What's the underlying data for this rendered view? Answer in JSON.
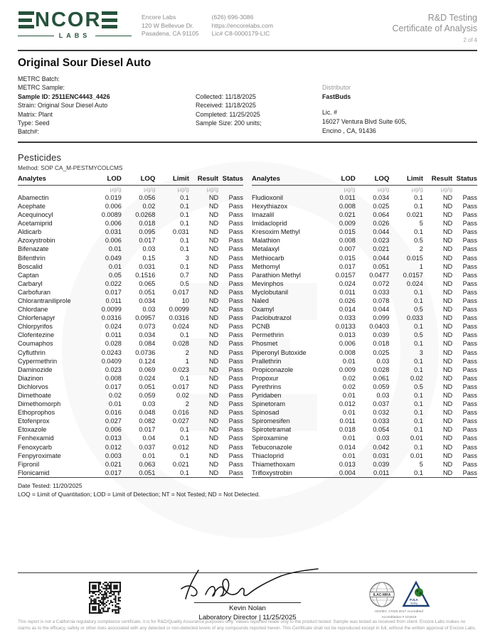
{
  "colors": {
    "brand_green": "#26523c",
    "rule_dark": "#3a3a3a"
  },
  "header": {
    "logo": {
      "brand": "NCOR",
      "sub": "LABS"
    },
    "lab": {
      "name": "Encore Labs",
      "address1": "120 W Bellevue Dr.",
      "address2": "Pasadena, CA 91105",
      "phone": "(626) 696-3086",
      "website": "https://encorelabs.com",
      "license": "Lic# C8-0000179-LIC"
    },
    "report": {
      "line1": "R&D Testing",
      "line2": "Certificate of Analysis",
      "page": "2 of 4"
    }
  },
  "sample": {
    "title": "Original Sour Diesel Auto",
    "meta": [
      "METRC Batch:",
      "METRC Sample:",
      "Sample ID: 2511ENC4443_4426",
      "Strain: Original Sour Diesel Auto",
      "Matrix: Plant",
      "Type: Seed",
      "Batch#:"
    ],
    "dates": [
      "Collected: 11/18/2025",
      "Received: 11/18/2025",
      "Completed: 11/25/2025",
      "Sample Size: 200 units;"
    ],
    "distributor": {
      "label": "Distributor",
      "name": "FastBuds",
      "lic_label": "Lic. #",
      "address1": "16027 Ventura Blvd Suite 605,",
      "address2": "Encino , CA, 91436"
    }
  },
  "pesticides": {
    "section_title": "Pesticides",
    "method": "Method: SOP CA_M-PESTMYCOLCMS",
    "columns": [
      "Analytes",
      "LOD",
      "LOQ",
      "Limit",
      "Result",
      "Status"
    ],
    "unit": "µg/g",
    "left_rows": [
      [
        "Abamectin",
        "0.019",
        "0.056",
        "0.1",
        "ND",
        "Pass"
      ],
      [
        "Acephate",
        "0.006",
        "0.02",
        "0.1",
        "ND",
        "Pass"
      ],
      [
        "Acequinocyl",
        "0.0089",
        "0.0268",
        "0.1",
        "ND",
        "Pass"
      ],
      [
        "Acetamiprid",
        "0.006",
        "0.018",
        "0.1",
        "ND",
        "Pass"
      ],
      [
        "Aldicarb",
        "0.031",
        "0.095",
        "0.031",
        "ND",
        "Pass"
      ],
      [
        "Azoxystrobin",
        "0.006",
        "0.017",
        "0.1",
        "ND",
        "Pass"
      ],
      [
        "Bifenazate",
        "0.01",
        "0.03",
        "0.1",
        "ND",
        "Pass"
      ],
      [
        "Bifenthrin",
        "0.049",
        "0.15",
        "3",
        "ND",
        "Pass"
      ],
      [
        "Boscalid",
        "0.01",
        "0.031",
        "0.1",
        "ND",
        "Pass"
      ],
      [
        "Captan",
        "0.05",
        "0.1516",
        "0.7",
        "ND",
        "Pass"
      ],
      [
        "Carbaryl",
        "0.022",
        "0.065",
        "0.5",
        "ND",
        "Pass"
      ],
      [
        "Carbofuran",
        "0.017",
        "0.051",
        "0.017",
        "ND",
        "Pass"
      ],
      [
        "Chlorantraniliprole",
        "0.011",
        "0.034",
        "10",
        "ND",
        "Pass"
      ],
      [
        "Chlordane",
        "0.0099",
        "0.03",
        "0.0099",
        "ND",
        "Pass"
      ],
      [
        "Chlorfenapyr",
        "0.0316",
        "0.0957",
        "0.0316",
        "ND",
        "Pass"
      ],
      [
        "Chlorpyrifos",
        "0.024",
        "0.073",
        "0.024",
        "ND",
        "Pass"
      ],
      [
        "Clofentezine",
        "0.011",
        "0.034",
        "0.1",
        "ND",
        "Pass"
      ],
      [
        "Coumaphos",
        "0.028",
        "0.084",
        "0.028",
        "ND",
        "Pass"
      ],
      [
        "Cyfluthrin",
        "0.0243",
        "0.0736",
        "2",
        "ND",
        "Pass"
      ],
      [
        "Cypermethrin",
        "0.0409",
        "0.124",
        "1",
        "ND",
        "Pass"
      ],
      [
        "Daminozide",
        "0.023",
        "0.069",
        "0.023",
        "ND",
        "Pass"
      ],
      [
        "Diazinon",
        "0.008",
        "0.024",
        "0.1",
        "ND",
        "Pass"
      ],
      [
        "Dichlorvos",
        "0.017",
        "0.051",
        "0.017",
        "ND",
        "Pass"
      ],
      [
        "Dimethoate",
        "0.02",
        "0.059",
        "0.02",
        "ND",
        "Pass"
      ],
      [
        "Dimethomorph",
        "0.01",
        "0.03",
        "2",
        "ND",
        "Pass"
      ],
      [
        "Ethoprophos",
        "0.016",
        "0.048",
        "0.016",
        "ND",
        "Pass"
      ],
      [
        "Etofenprox",
        "0.027",
        "0.082",
        "0.027",
        "ND",
        "Pass"
      ],
      [
        "Etoxazole",
        "0.006",
        "0.017",
        "0.1",
        "ND",
        "Pass"
      ],
      [
        "Fenhexamid",
        "0.013",
        "0.04",
        "0.1",
        "ND",
        "Pass"
      ],
      [
        "Fenoxycarb",
        "0.012",
        "0.037",
        "0.012",
        "ND",
        "Pass"
      ],
      [
        "Fenpyroximate",
        "0.003",
        "0.01",
        "0.1",
        "ND",
        "Pass"
      ],
      [
        "Fipronil",
        "0.021",
        "0.063",
        "0.021",
        "ND",
        "Pass"
      ],
      [
        "Flonicamid",
        "0.017",
        "0.051",
        "0.1",
        "ND",
        "Pass"
      ]
    ],
    "right_rows": [
      [
        "Fludioxonil",
        "0.011",
        "0.034",
        "0.1",
        "ND",
        "Pass"
      ],
      [
        "Hexythiazox",
        "0.008",
        "0.025",
        "0.1",
        "ND",
        "Pass"
      ],
      [
        "Imazalil",
        "0.021",
        "0.064",
        "0.021",
        "ND",
        "Pass"
      ],
      [
        "Imidacloprid",
        "0.009",
        "0.026",
        "5",
        "ND",
        "Pass"
      ],
      [
        "Kresoxim Methyl",
        "0.015",
        "0.044",
        "0.1",
        "ND",
        "Pass"
      ],
      [
        "Malathion",
        "0.008",
        "0.023",
        "0.5",
        "ND",
        "Pass"
      ],
      [
        "Metalaxyl",
        "0.007",
        "0.021",
        "2",
        "ND",
        "Pass"
      ],
      [
        "Methiocarb",
        "0.015",
        "0.044",
        "0.015",
        "ND",
        "Pass"
      ],
      [
        "Methomyl",
        "0.017",
        "0.051",
        "1",
        "ND",
        "Pass"
      ],
      [
        "Parathion Methyl",
        "0.0157",
        "0.0477",
        "0.0157",
        "ND",
        "Pass"
      ],
      [
        "Mevinphos",
        "0.024",
        "0.072",
        "0.024",
        "ND",
        "Pass"
      ],
      [
        "Myclobutanil",
        "0.011",
        "0.033",
        "0.1",
        "ND",
        "Pass"
      ],
      [
        "Naled",
        "0.026",
        "0.078",
        "0.1",
        "ND",
        "Pass"
      ],
      [
        "Oxamyl",
        "0.014",
        "0.044",
        "0.5",
        "ND",
        "Pass"
      ],
      [
        "Paclobutrazol",
        "0.033",
        "0.099",
        "0.033",
        "ND",
        "Pass"
      ],
      [
        "PCNB",
        "0.0133",
        "0.0403",
        "0.1",
        "ND",
        "Pass"
      ],
      [
        "Permethrin",
        "0.013",
        "0.039",
        "0.5",
        "ND",
        "Pass"
      ],
      [
        "Phosmet",
        "0.006",
        "0.018",
        "0.1",
        "ND",
        "Pass"
      ],
      [
        "Piperonyl Butoxide",
        "0.008",
        "0.025",
        "3",
        "ND",
        "Pass"
      ],
      [
        "Prallethrin",
        "0.01",
        "0.03",
        "0.1",
        "ND",
        "Pass"
      ],
      [
        "Propiconazole",
        "0.009",
        "0.028",
        "0.1",
        "ND",
        "Pass"
      ],
      [
        "Propoxur",
        "0.02",
        "0.061",
        "0.02",
        "ND",
        "Pass"
      ],
      [
        "Pyrethrins",
        "0.02",
        "0.059",
        "0.5",
        "ND",
        "Pass"
      ],
      [
        "Pyridaben",
        "0.01",
        "0.03",
        "0.1",
        "ND",
        "Pass"
      ],
      [
        "Spinetoram",
        "0.012",
        "0.037",
        "0.1",
        "ND",
        "Pass"
      ],
      [
        "Spinosad",
        "0.01",
        "0.032",
        "0.1",
        "ND",
        "Pass"
      ],
      [
        "Spiromesifen",
        "0.011",
        "0.033",
        "0.1",
        "ND",
        "Pass"
      ],
      [
        "Spirotetramat",
        "0.018",
        "0.054",
        "0.1",
        "ND",
        "Pass"
      ],
      [
        "Spiroxamine",
        "0.01",
        "0.03",
        "0.01",
        "ND",
        "Pass"
      ],
      [
        "Tebuconazole",
        "0.014",
        "0.042",
        "0.1",
        "ND",
        "Pass"
      ],
      [
        "Thiacloprid",
        "0.01",
        "0.031",
        "0.01",
        "ND",
        "Pass"
      ],
      [
        "Thiamethoxam",
        "0.013",
        "0.039",
        "5",
        "ND",
        "Pass"
      ],
      [
        "Trifloxystrobin",
        "0.004",
        "0.011",
        "0.1",
        "ND",
        "Pass"
      ]
    ],
    "date_tested": "Date Tested: 11/20/2025",
    "legend": "LOQ = Limit of Quantitation; LOD = Limit of Detection; NT = Not Tested; ND = Not Detected."
  },
  "footer": {
    "signer_name": "Kevin Nolan",
    "signer_title": "Laboratory Director | 11/25/2025",
    "badges": {
      "ilac": "ILAC-MRA",
      "pjla": "PJLA",
      "pjla_sub": "Testing",
      "accreditation1": "ISO/IEC 17025:2017 Accredited",
      "accreditation2": "Accreditation # 101615"
    },
    "disclaimer": "This report is not a California regulatory compliance certificate, it is for R&D/Quality Assurance purposes only. Values reported relate only to the product tested. Sample was tested as received from client. Encore Labs makes no claims as to the efficacy, safety or other risks associated with any detected or non-detected levels of any compounds reported herein. This Certificate shall not be reproduced except in full, without the written approval of Encore Labs."
  }
}
